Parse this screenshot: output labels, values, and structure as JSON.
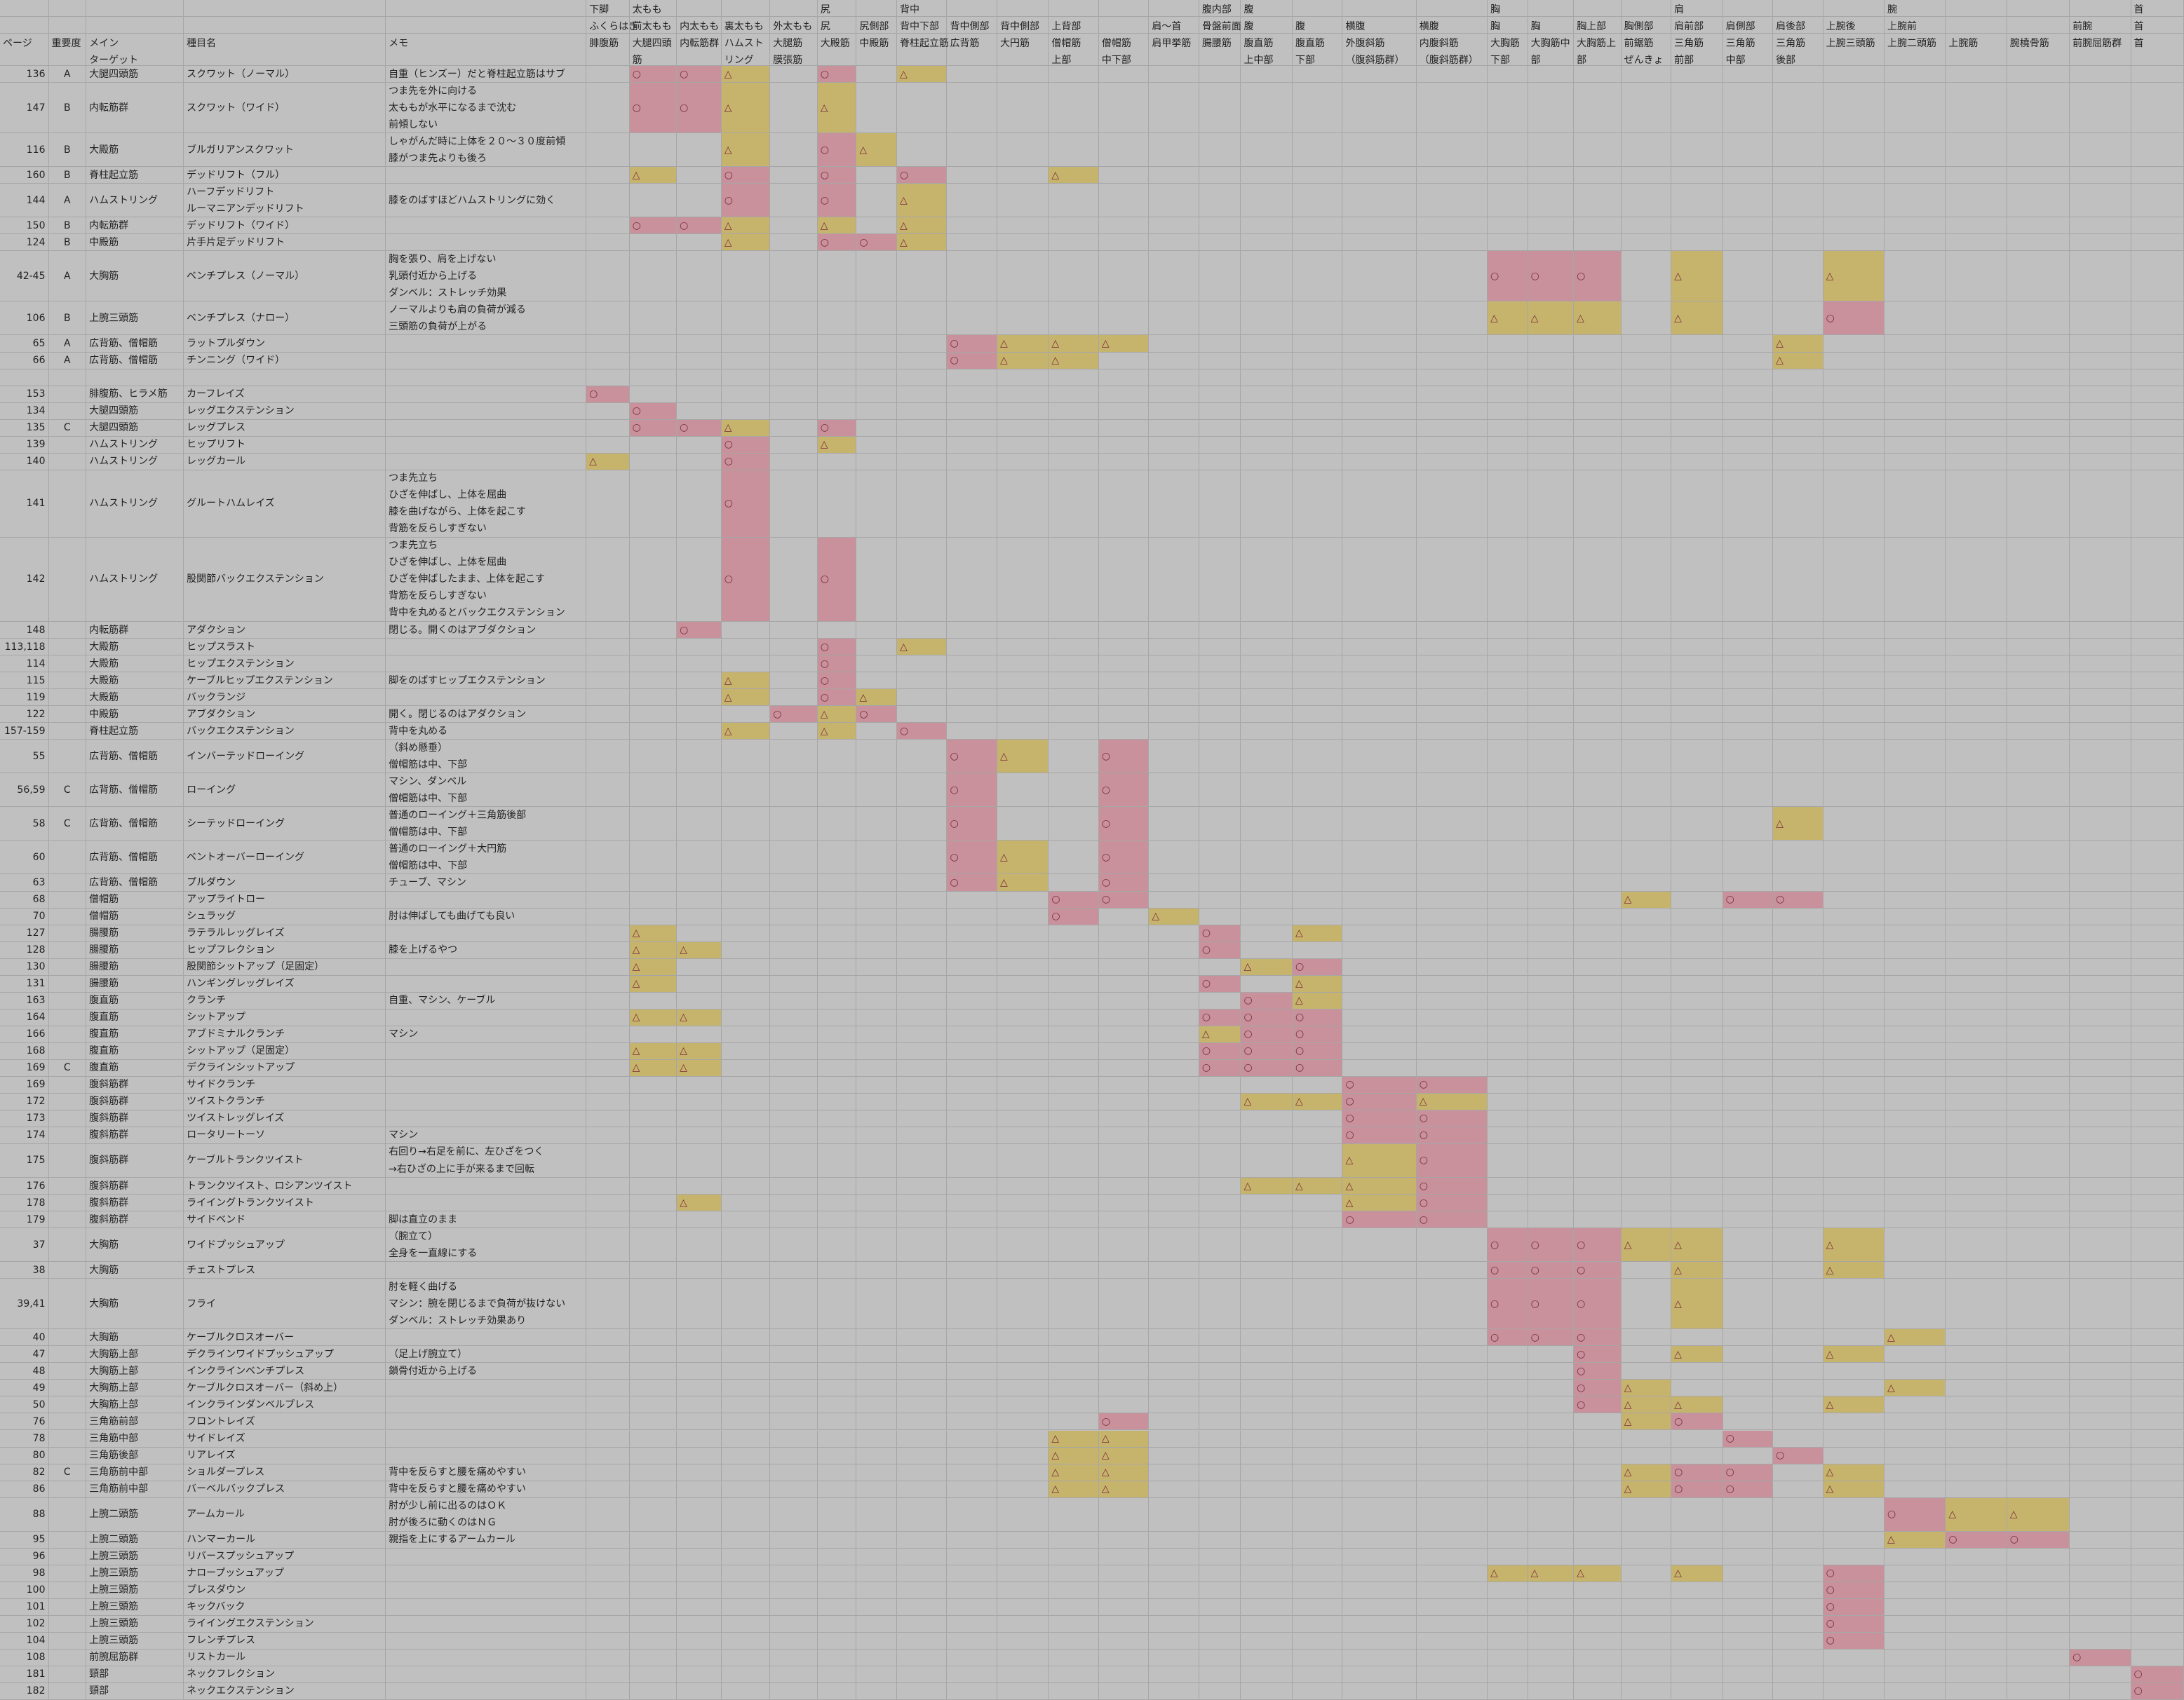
{
  "header": [
    {
      "5": "下脚",
      "6": "太もも",
      "10": "尻",
      "12": "背中",
      "18": "腹内部",
      "19": "腹",
      "23": "胸",
      "27": "肩",
      "31": "腕",
      "35": "首"
    },
    {
      "5": "ふくらはぎ",
      "6": "前太もも",
      "7": "内太もも",
      "8": "裏太もも",
      "9": "外太もも",
      "10": "尻",
      "11": "尻側部",
      "12": "背中下部",
      "13": "背中側部",
      "14": "背中側部",
      "15": "上背部",
      "17": "肩〜首",
      "18": "骨盤前面",
      "19": "腹",
      "20": "腹",
      "21": "横腹",
      "22": "横腹",
      "23": "胸",
      "24": "胸",
      "25": "胸上部",
      "26": "胸側部",
      "27": "肩前部",
      "28": "肩側部",
      "29": "肩後部",
      "30": "上腕後",
      "31": "上腕前",
      "34": "前腕",
      "35": "首"
    },
    {
      "0": "ページ",
      "1": "重要度",
      "2": "メイン\nターゲット",
      "3": "種目名",
      "4": "メモ",
      "5": "腓腹筋",
      "6": "大腿四頭\n筋",
      "7": "内転筋群",
      "8": "ハムスト\nリング",
      "9": "大腿筋\n膜張筋",
      "10": "大殿筋",
      "11": "中殿筋",
      "12": "脊柱起立筋",
      "13": "広背筋",
      "14": "大円筋",
      "15": "僧帽筋\n上部",
      "16": "僧帽筋\n中下部",
      "17": "肩甲挙筋",
      "18": "腸腰筋",
      "19": "腹直筋\n上中部",
      "20": "腹直筋\n下部",
      "21": "外腹斜筋\n（腹斜筋群）",
      "22": "内腹斜筋\n（腹斜筋群）",
      "23": "大胸筋\n下部",
      "24": "大胸筋中\n部",
      "25": "大胸筋上\n部",
      "26": "前鋸筋\nぜんきょ",
      "27": "三角筋\n前部",
      "28": "三角筋\n中部",
      "29": "三角筋\n後部",
      "30": "上腕三頭筋",
      "31": "上腕二頭筋",
      "32": "上腕筋",
      "33": "腕橈骨筋",
      "34": "前腕屈筋群",
      "35": "首"
    }
  ],
  "rows": [
    {
      "page": 136,
      "importance": "A",
      "target": "大腿四頭筋",
      "exercise": "スクワット（ノーマル）",
      "memo": "自重（ヒンズー）だと脊柱起立筋はサブ",
      "marks": {
        "1": "○",
        "2": "○",
        "3": "△",
        "5": "○",
        "7": "△"
      }
    },
    {
      "page": 147,
      "importance": "B",
      "target": "内転筋群",
      "exercise": "スクワット（ワイド）",
      "memo": "つま先を外に向ける\n太ももが水平になるまで沈む\n前傾しない",
      "marks": {
        "1": "○",
        "2": "○",
        "3": "△",
        "5": "△"
      }
    },
    {
      "page": 116,
      "importance": "B",
      "target": "大殿筋",
      "exercise": "ブルガリアンスクワット",
      "memo": "しゃがんだ時に上体を２０～３０度前傾\n膝がつま先よりも後ろ",
      "marks": {
        "3": "△",
        "5": "○",
        "6": "△"
      }
    },
    {
      "page": 160,
      "importance": "B",
      "target": "脊柱起立筋",
      "exercise": "デッドリフト（フル）",
      "marks": {
        "1": "△",
        "3": "○",
        "5": "○",
        "7": "○",
        "10": "△"
      }
    },
    {
      "page": 144,
      "importance": "A",
      "target": "ハムストリング",
      "exercise": "ハーフデッドリフト\nルーマニアンデッドリフト",
      "memo": "膝をのばすほどハムストリングに効く",
      "marks": {
        "3": "○",
        "5": "○",
        "7": "△"
      }
    },
    {
      "page": 150,
      "importance": "B",
      "target": "内転筋群",
      "exercise": "デッドリフト（ワイド）",
      "marks": {
        "1": "○",
        "2": "○",
        "3": "△",
        "5": "△",
        "7": "△"
      }
    },
    {
      "page": 124,
      "importance": "B",
      "target": "中殿筋",
      "exercise": "片手片足デッドリフト",
      "marks": {
        "3": "△",
        "5": "○",
        "6": "○",
        "7": "△"
      }
    },
    {
      "page": "42-45",
      "importance": "A",
      "target": "大胸筋",
      "exercise": "ベンチプレス（ノーマル）",
      "memo": "胸を張り、肩を上げない\n乳頭付近から上げる\nダンベル：ストレッチ効果",
      "marks": {
        "18": "○",
        "19": "○",
        "20": "○",
        "22": "△",
        "25": "△"
      }
    },
    {
      "page": 106,
      "importance": "B",
      "target": "上腕三頭筋",
      "exercise": "ベンチプレス（ナロー）",
      "memo": "ノーマルよりも肩の負荷が減る\n三頭筋の負荷が上がる",
      "marks": {
        "18": "△",
        "19": "△",
        "20": "△",
        "22": "△",
        "25": "○"
      }
    },
    {
      "page": 65,
      "importance": "A",
      "target": "広背筋、僧帽筋",
      "exercise": "ラットプルダウン",
      "marks": {
        "8": "○",
        "9": "△",
        "10": "△",
        "11": "△",
        "24": "△"
      }
    },
    {
      "page": 66,
      "importance": "A",
      "target": "広背筋、僧帽筋",
      "exercise": "チンニング（ワイド）",
      "marks": {
        "8": "○",
        "9": "△",
        "10": "△",
        "24": "△"
      }
    },
    {
      "page": null
    },
    {
      "page": 153,
      "target": "腓腹筋、ヒラメ筋",
      "exercise": "カーフレイズ",
      "marks": {
        "0": "○"
      }
    },
    {
      "page": 134,
      "target": "大腿四頭筋",
      "exercise": "レッグエクステンション",
      "marks": {
        "1": "○"
      }
    },
    {
      "page": 135,
      "importance": "C",
      "target": "大腿四頭筋",
      "exercise": "レッグプレス",
      "marks": {
        "1": "○",
        "2": "○",
        "3": "△",
        "5": "○"
      }
    },
    {
      "page": 139,
      "target": "ハムストリング",
      "exercise": "ヒップリフト",
      "marks": {
        "3": "○",
        "5": "△"
      }
    },
    {
      "page": 140,
      "target": "ハムストリング",
      "exercise": "レッグカール",
      "marks": {
        "0": "△",
        "3": "○"
      }
    },
    {
      "page": 141,
      "target": "ハムストリング",
      "exercise": "グルートハムレイズ",
      "memo": "つま先立ち\nひざを伸ばし、上体を屈曲\n膝を曲げながら、上体を起こす\n背筋を反らしすぎない",
      "marks": {
        "3": "○"
      }
    },
    {
      "page": 142,
      "target": "ハムストリング",
      "exercise": "股関節バックエクステンション",
      "memo": "つま先立ち\nひざを伸ばし、上体を屈曲\nひざを伸ばしたまま、上体を起こす\n背筋を反らしすぎない\n背中を丸めるとバックエクステンション",
      "marks": {
        "3": "○",
        "5": "○"
      }
    },
    {
      "page": 148,
      "target": "内転筋群",
      "exercise": "アダクション",
      "memo": "閉じる。開くのはアブダクション",
      "marks": {
        "2": "○"
      }
    },
    {
      "page": "113,118",
      "target": "大殿筋",
      "exercise": "ヒップスラスト",
      "marks": {
        "5": "○",
        "7": "△"
      }
    },
    {
      "page": 114,
      "target": "大殿筋",
      "exercise": "ヒップエクステンション",
      "marks": {
        "5": "○"
      }
    },
    {
      "page": 115,
      "target": "大殿筋",
      "exercise": "ケーブルヒップエクステンション",
      "memo": "脚をのばすヒップエクステンション",
      "marks": {
        "3": "△",
        "5": "○"
      }
    },
    {
      "page": 119,
      "target": "大殿筋",
      "exercise": "バックランジ",
      "marks": {
        "3": "△",
        "5": "○",
        "6": "△"
      }
    },
    {
      "page": 122,
      "target": "中殿筋",
      "exercise": "アブダクション",
      "memo": "開く。閉じるのはアダクション",
      "marks": {
        "4": "○",
        "5": "△",
        "6": "○"
      }
    },
    {
      "page": "157-159",
      "target": "脊柱起立筋",
      "exercise": "バックエクステンション",
      "memo": "背中を丸める",
      "marks": {
        "3": "△",
        "5": "△",
        "7": "○"
      }
    },
    {
      "page": 55,
      "target": "広背筋、僧帽筋",
      "exercise": "インバーテッドローイング",
      "memo": "（斜め懸垂）\n僧帽筋は中、下部",
      "marks": {
        "8": "○",
        "9": "△",
        "11": "○"
      }
    },
    {
      "page": "56,59",
      "importance": "C",
      "target": "広背筋、僧帽筋",
      "exercise": "ローイング",
      "memo": "マシン、ダンベル\n僧帽筋は中、下部",
      "marks": {
        "8": "○",
        "11": "○"
      }
    },
    {
      "page": 58,
      "importance": "C",
      "target": "広背筋、僧帽筋",
      "exercise": "シーテッドローイング",
      "memo": "普通のローイング＋三角筋後部\n僧帽筋は中、下部",
      "marks": {
        "8": "○",
        "11": "○",
        "24": "△"
      }
    },
    {
      "page": 60,
      "target": "広背筋、僧帽筋",
      "exercise": "ベントオーバーローイング",
      "memo": "普通のローイング＋大円筋\n僧帽筋は中、下部",
      "marks": {
        "8": "○",
        "9": "△",
        "11": "○"
      }
    },
    {
      "page": 63,
      "target": "広背筋、僧帽筋",
      "exercise": "プルダウン",
      "memo": "チューブ、マシン",
      "marks": {
        "8": "○",
        "9": "△",
        "11": "○"
      }
    },
    {
      "page": 68,
      "target": "僧帽筋",
      "exercise": "アップライトロー",
      "marks": {
        "10": "○",
        "11": "○",
        "21": "△",
        "23": "○",
        "24": "○"
      }
    },
    {
      "page": 70,
      "target": "僧帽筋",
      "exercise": "シュラッグ",
      "memo": "肘は伸ばしても曲げても良い",
      "marks": {
        "10": "○",
        "12": "△"
      }
    },
    {
      "page": 127,
      "target": "腸腰筋",
      "exercise": "ラテラルレッグレイズ",
      "marks": {
        "1": "△",
        "13": "○",
        "15": "△"
      }
    },
    {
      "page": 128,
      "target": "腸腰筋",
      "exercise": "ヒップフレクション",
      "memo": "膝を上げるやつ",
      "marks": {
        "1": "△",
        "2": "△",
        "13": "○"
      }
    },
    {
      "page": 130,
      "target": "腸腰筋",
      "exercise": "股関節シットアップ（足固定）",
      "marks": {
        "1": "△",
        "14": "△",
        "15": "○"
      }
    },
    {
      "page": 131,
      "target": "腸腰筋",
      "exercise": "ハンギングレッグレイズ",
      "marks": {
        "1": "△",
        "13": "○",
        "15": "△"
      }
    },
    {
      "page": 163,
      "target": "腹直筋",
      "exercise": "クランチ",
      "memo": "自重、マシン、ケーブル",
      "marks": {
        "14": "○",
        "15": "△"
      }
    },
    {
      "page": 164,
      "target": "腹直筋",
      "exercise": "シットアップ",
      "marks": {
        "1": "△",
        "2": "△",
        "13": "○",
        "14": "○",
        "15": "○"
      }
    },
    {
      "page": 166,
      "target": "腹直筋",
      "exercise": "アブドミナルクランチ",
      "memo": "マシン",
      "marks": {
        "13": "△",
        "14": "○",
        "15": "○"
      }
    },
    {
      "page": 168,
      "target": "腹直筋",
      "exercise": "シットアップ（足固定）",
      "marks": {
        "1": "△",
        "2": "△",
        "13": "○",
        "14": "○",
        "15": "○"
      }
    },
    {
      "page": 169,
      "importance": "C",
      "target": "腹直筋",
      "exercise": "デクラインシットアップ",
      "marks": {
        "1": "△",
        "2": "△",
        "13": "○",
        "14": "○",
        "15": "○"
      }
    },
    {
      "page": 169,
      "target": "腹斜筋群",
      "exercise": "サイドクランチ",
      "marks": {
        "16": "○",
        "17": "○"
      }
    },
    {
      "page": 172,
      "target": "腹斜筋群",
      "exercise": "ツイストクランチ",
      "marks": {
        "14": "△",
        "15": "△",
        "16": "○",
        "17": "△"
      }
    },
    {
      "page": 173,
      "target": "腹斜筋群",
      "exercise": "ツイストレッグレイズ",
      "marks": {
        "16": "○",
        "17": "○"
      }
    },
    {
      "page": 174,
      "target": "腹斜筋群",
      "exercise": "ロータリートーソ",
      "memo": "マシン",
      "marks": {
        "16": "○",
        "17": "○"
      }
    },
    {
      "page": 175,
      "target": "腹斜筋群",
      "exercise": "ケーブルトランクツイスト",
      "memo": "右回り→右足を前に、左ひざをつく\n→右ひざの上に手が来るまで回転",
      "marks": {
        "16": "△",
        "17": "○"
      }
    },
    {
      "page": 176,
      "target": "腹斜筋群",
      "exercise": "トランクツイスト、ロシアンツイスト",
      "marks": {
        "14": "△",
        "15": "△",
        "16": "△",
        "17": "○"
      }
    },
    {
      "page": 178,
      "target": "腹斜筋群",
      "exercise": "ライイングトランクツイスト",
      "marks": {
        "2": "△",
        "16": "△",
        "17": "○"
      }
    },
    {
      "page": 179,
      "target": "腹斜筋群",
      "exercise": "サイドベンド",
      "memo": "脚は直立のまま",
      "marks": {
        "16": "○",
        "17": "○"
      }
    },
    {
      "page": 37,
      "target": "大胸筋",
      "exercise": "ワイドプッシュアップ",
      "memo": "（腕立て）\n全身を一直線にする",
      "marks": {
        "18": "○",
        "19": "○",
        "20": "○",
        "21": "△",
        "22": "△",
        "25": "△"
      }
    },
    {
      "page": 38,
      "target": "大胸筋",
      "exercise": "チェストプレス",
      "marks": {
        "18": "○",
        "19": "○",
        "20": "○",
        "22": "△",
        "25": "△"
      }
    },
    {
      "page": "39,41",
      "target": "大胸筋",
      "exercise": "フライ",
      "memo": "肘を軽く曲げる\nマシン：腕を閉じるまで負荷が抜けない\nダンベル：ストレッチ効果あり",
      "marks": {
        "18": "○",
        "19": "○",
        "20": "○",
        "22": "△"
      }
    },
    {
      "page": 40,
      "target": "大胸筋",
      "exercise": "ケーブルクロスオーバー",
      "marks": {
        "18": "○",
        "19": "○",
        "20": "○",
        "26": "△"
      }
    },
    {
      "page": 47,
      "target": "大胸筋上部",
      "exercise": "デクラインワイドプッシュアップ",
      "memo": "（足上げ腕立て）",
      "marks": {
        "20": "○",
        "22": "△",
        "25": "△"
      }
    },
    {
      "page": 48,
      "target": "大胸筋上部",
      "exercise": "インクラインベンチプレス",
      "memo": "鎖骨付近から上げる",
      "marks": {
        "20": "○"
      }
    },
    {
      "page": 49,
      "target": "大胸筋上部",
      "exercise": "ケーブルクロスオーバー（斜め上）",
      "marks": {
        "20": "○",
        "21": "△",
        "26": "△"
      }
    },
    {
      "page": 50,
      "target": "大胸筋上部",
      "exercise": "インクラインダンベルプレス",
      "marks": {
        "20": "○",
        "21": "△",
        "22": "△",
        "25": "△"
      }
    },
    {
      "page": 76,
      "target": "三角筋前部",
      "exercise": "フロントレイズ",
      "marks": {
        "11": "○",
        "21": "△",
        "22": "○"
      }
    },
    {
      "page": 78,
      "target": "三角筋中部",
      "exercise": "サイドレイズ",
      "marks": {
        "10": "△",
        "11": "△",
        "23": "○"
      }
    },
    {
      "page": 80,
      "target": "三角筋後部",
      "exercise": "リアレイズ",
      "marks": {
        "10": "△",
        "11": "△",
        "24": "○"
      }
    },
    {
      "page": 82,
      "importance": "C",
      "target": "三角筋前中部",
      "exercise": "ショルダープレス",
      "memo": "背中を反らすと腰を痛めやすい",
      "marks": {
        "10": "△",
        "11": "△",
        "21": "△",
        "22": "○",
        "23": "○",
        "25": "△"
      }
    },
    {
      "page": 86,
      "target": "三角筋前中部",
      "exercise": "バーベルバックプレス",
      "memo": "背中を反らすと腰を痛めやすい",
      "marks": {
        "10": "△",
        "11": "△",
        "21": "△",
        "22": "○",
        "23": "○",
        "25": "△"
      }
    },
    {
      "page": 88,
      "target": "上腕二頭筋",
      "exercise": "アームカール",
      "memo": "肘が少し前に出るのはＯＫ\n肘が後ろに動くのはＮＧ",
      "marks": {
        "26": "○",
        "27": "△",
        "28": "△"
      }
    },
    {
      "page": 95,
      "target": "上腕二頭筋",
      "exercise": "ハンマーカール",
      "memo": "親指を上にするアームカール",
      "marks": {
        "26": "△",
        "27": "○",
        "28": "○"
      }
    },
    {
      "page": 96,
      "target": "上腕三頭筋",
      "exercise": "リバースプッシュアップ"
    },
    {
      "page": 98,
      "target": "上腕三頭筋",
      "exercise": "ナロープッシュアップ",
      "marks": {
        "18": "△",
        "19": "△",
        "20": "△",
        "22": "△",
        "25": "○"
      }
    },
    {
      "page": 100,
      "target": "上腕三頭筋",
      "exercise": "プレスダウン",
      "marks": {
        "25": "○"
      }
    },
    {
      "page": 101,
      "target": "上腕三頭筋",
      "exercise": "キックバック",
      "marks": {
        "25": "○"
      }
    },
    {
      "page": 102,
      "target": "上腕三頭筋",
      "exercise": "ライイングエクステンション",
      "marks": {
        "25": "○"
      }
    },
    {
      "page": 104,
      "target": "上腕三頭筋",
      "exercise": "フレンチプレス",
      "marks": {
        "25": "○"
      }
    },
    {
      "page": 108,
      "target": "前腕屈筋群",
      "exercise": "リストカール",
      "marks": {
        "29": "○"
      }
    },
    {
      "page": 181,
      "target": "頸部",
      "exercise": "ネックフレクション",
      "marks": {
        "30": "○"
      }
    },
    {
      "page": 182,
      "target": "頸部",
      "exercise": "ネックエクステンション",
      "marks": {
        "30": "○"
      }
    }
  ]
}
